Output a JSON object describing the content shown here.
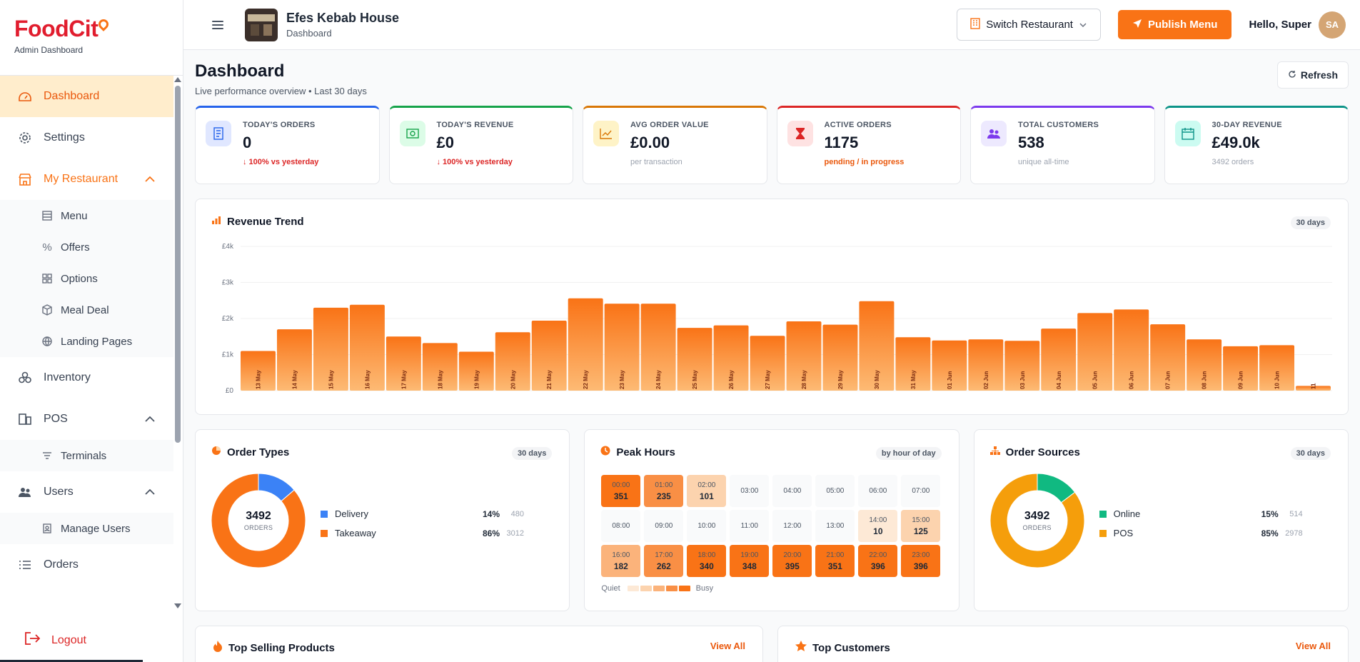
{
  "brand": {
    "name": "FoodCit",
    "sub": "Admin Dashboard"
  },
  "sidebar": {
    "items": [
      {
        "label": "Dashboard",
        "icon": "dashboard-icon"
      },
      {
        "label": "Settings",
        "icon": "gear-icon"
      },
      {
        "label": "My Restaurant",
        "icon": "store-icon"
      },
      {
        "label": "Inventory",
        "icon": "boxes-icon"
      },
      {
        "label": "POS",
        "icon": "pos-icon"
      },
      {
        "label": "Users",
        "icon": "users-icon"
      },
      {
        "label": "Orders",
        "icon": "list-icon"
      }
    ],
    "restaurant_sub": [
      "Menu",
      "Offers",
      "Options",
      "Meal Deal",
      "Landing Pages"
    ],
    "pos_sub": [
      "Terminals"
    ],
    "users_sub": [
      "Manage Users"
    ],
    "logout": "Logout"
  },
  "topbar": {
    "restaurant_name": "Efes Kebab House",
    "restaurant_sub": "Dashboard",
    "switch_label": "Switch Restaurant",
    "publish_label": "Publish Menu",
    "hello": "Hello, Super",
    "avatar": "SA"
  },
  "page": {
    "title": "Dashboard",
    "subtitle": "Live performance overview • Last 30 days",
    "refresh": "Refresh"
  },
  "stats": [
    {
      "label": "TODAY'S ORDERS",
      "value": "0",
      "note": "↓ 100% vs yesterday",
      "color": "#2563eb",
      "icon_bg": "#e0e7ff",
      "icon_color": "#2563eb"
    },
    {
      "label": "TODAY'S REVENUE",
      "value": "£0",
      "note": "↓ 100% vs yesterday",
      "color": "#16a34a",
      "icon_bg": "#dcfce7",
      "icon_color": "#16a34a"
    },
    {
      "label": "AVG ORDER VALUE",
      "value": "£0.00",
      "note": "per transaction",
      "color": "#d97706",
      "icon_bg": "#fef3c7",
      "icon_color": "#d97706"
    },
    {
      "label": "ACTIVE ORDERS",
      "value": "1175",
      "note": "pending / in progress",
      "color": "#dc2626",
      "icon_bg": "#fee2e2",
      "icon_color": "#dc2626"
    },
    {
      "label": "TOTAL CUSTOMERS",
      "value": "538",
      "note": "unique all-time",
      "color": "#7c3aed",
      "icon_bg": "#ede9fe",
      "icon_color": "#7c3aed"
    },
    {
      "label": "30-DAY REVENUE",
      "value": "£49.0k",
      "note": "3492 orders",
      "color": "#0d9488",
      "icon_bg": "#ccfbf1",
      "icon_color": "#0d9488"
    }
  ],
  "revenue": {
    "title": "Revenue Trend",
    "badge": "30 days"
  },
  "chart_data": {
    "type": "bar",
    "title": "Revenue Trend",
    "categories": [
      "13 May",
      "14 May",
      "15 May",
      "16 May",
      "17 May",
      "18 May",
      "19 May",
      "20 May",
      "21 May",
      "22 May",
      "23 May",
      "24 May",
      "25 May",
      "26 May",
      "27 May",
      "28 May",
      "29 May",
      "30 May",
      "31 May",
      "01 Jun",
      "02 Jun",
      "03 Jun",
      "04 Jun",
      "05 Jun",
      "06 Jun",
      "07 Jun",
      "08 Jun",
      "09 Jun",
      "10 Jun",
      "11"
    ],
    "values": [
      1100,
      1700,
      2300,
      2380,
      1500,
      1320,
      1080,
      1620,
      1940,
      2560,
      2410,
      2410,
      1740,
      1810,
      1520,
      1920,
      1830,
      2480,
      1480,
      1390,
      1420,
      1380,
      1720,
      2150,
      2250,
      1840,
      1420,
      1230,
      1260,
      130
    ],
    "ylim": [
      0,
      4000
    ],
    "yticks": [
      "£0",
      "£1k",
      "£2k",
      "£3k",
      "£4k"
    ],
    "grid": true
  },
  "order_types": {
    "title": "Order Types",
    "badge": "30 days",
    "total": "3492",
    "total_label": "ORDERS",
    "items": [
      {
        "name": "Delivery",
        "pct": "14%",
        "count": "480",
        "color": "#3b82f6",
        "value": 480
      },
      {
        "name": "Takeaway",
        "pct": "86%",
        "count": "3012",
        "color": "#f97316",
        "value": 3012
      }
    ]
  },
  "peak_hours": {
    "title": "Peak Hours",
    "badge": "by hour of day",
    "cells": [
      {
        "t": "00:00",
        "c": "351"
      },
      {
        "t": "01:00",
        "c": "235"
      },
      {
        "t": "02:00",
        "c": "101"
      },
      {
        "t": "03:00",
        "c": ""
      },
      {
        "t": "04:00",
        "c": ""
      },
      {
        "t": "05:00",
        "c": ""
      },
      {
        "t": "06:00",
        "c": ""
      },
      {
        "t": "07:00",
        "c": ""
      },
      {
        "t": "08:00",
        "c": ""
      },
      {
        "t": "09:00",
        "c": ""
      },
      {
        "t": "10:00",
        "c": ""
      },
      {
        "t": "11:00",
        "c": ""
      },
      {
        "t": "12:00",
        "c": ""
      },
      {
        "t": "13:00",
        "c": ""
      },
      {
        "t": "14:00",
        "c": "10"
      },
      {
        "t": "15:00",
        "c": "125"
      },
      {
        "t": "16:00",
        "c": "182"
      },
      {
        "t": "17:00",
        "c": "262"
      },
      {
        "t": "18:00",
        "c": "340"
      },
      {
        "t": "19:00",
        "c": "348"
      },
      {
        "t": "20:00",
        "c": "395"
      },
      {
        "t": "21:00",
        "c": "351"
      },
      {
        "t": "22:00",
        "c": "396"
      },
      {
        "t": "23:00",
        "c": "396"
      }
    ],
    "quiet": "Quiet",
    "busy": "Busy"
  },
  "order_sources": {
    "title": "Order Sources",
    "badge": "30 days",
    "total": "3492",
    "total_label": "ORDERS",
    "items": [
      {
        "name": "Online",
        "pct": "15%",
        "count": "514",
        "color": "#10b981",
        "value": 514
      },
      {
        "name": "POS",
        "pct": "85%",
        "count": "2978",
        "color": "#f59e0b",
        "value": 2978
      }
    ]
  },
  "bottom": {
    "top_products": "Top Selling Products",
    "top_customers": "Top Customers",
    "view_all": "View All"
  }
}
